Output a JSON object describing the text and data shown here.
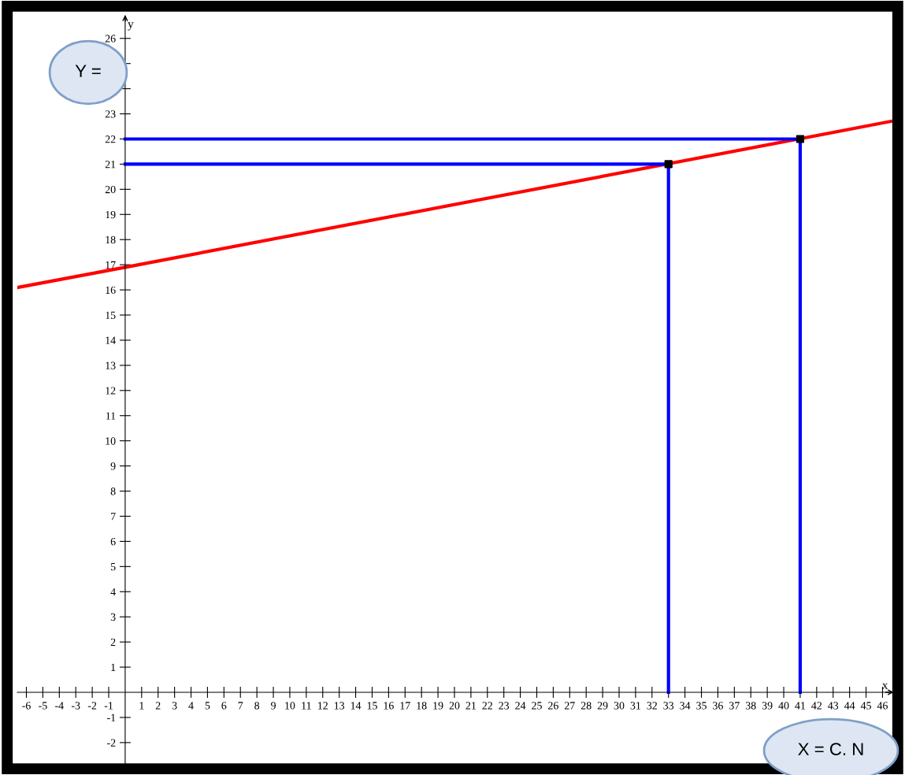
{
  "chart_data": {
    "type": "line",
    "xlabel": "x",
    "ylabel": "y",
    "annotations": [
      "Y =",
      "X = C. N"
    ],
    "xlim": [
      -6.55,
      46.6
    ],
    "ylim": [
      -2.85,
      26.9
    ],
    "xticks": [
      -6,
      -5,
      -4,
      -3,
      -2,
      -1,
      1,
      2,
      3,
      4,
      5,
      6,
      7,
      8,
      9,
      10,
      11,
      12,
      13,
      14,
      15,
      16,
      17,
      18,
      19,
      20,
      21,
      22,
      23,
      24,
      25,
      26,
      27,
      28,
      29,
      30,
      31,
      32,
      33,
      34,
      35,
      36,
      37,
      38,
      39,
      40,
      41,
      42,
      43,
      44,
      45,
      46
    ],
    "yticks": [
      -2,
      -1,
      1,
      2,
      3,
      4,
      5,
      6,
      7,
      8,
      9,
      10,
      11,
      12,
      13,
      14,
      15,
      16,
      17,
      18,
      19,
      20,
      21,
      22,
      23,
      {
        "value": 24,
        "label": null
      },
      {
        "value": 25,
        "label": null
      },
      26
    ],
    "grid": false,
    "legend": false,
    "series": [
      {
        "color": "#ff0000",
        "x": [
          -6.5,
          0,
          46.5
        ],
        "values": [
          16.1,
          16.9,
          22.7
        ]
      },
      {
        "color": "#0000ff",
        "x": [
          0,
          33,
          33
        ],
        "values": [
          21,
          21,
          0
        ]
      },
      {
        "color": "#0000ff",
        "x": [
          0,
          41,
          41
        ],
        "values": [
          22,
          22,
          0
        ]
      },
      {
        "type": "scatter",
        "color": "#000000",
        "x": [
          33,
          41
        ],
        "values": [
          21,
          22
        ],
        "marker": "square"
      }
    ]
  }
}
